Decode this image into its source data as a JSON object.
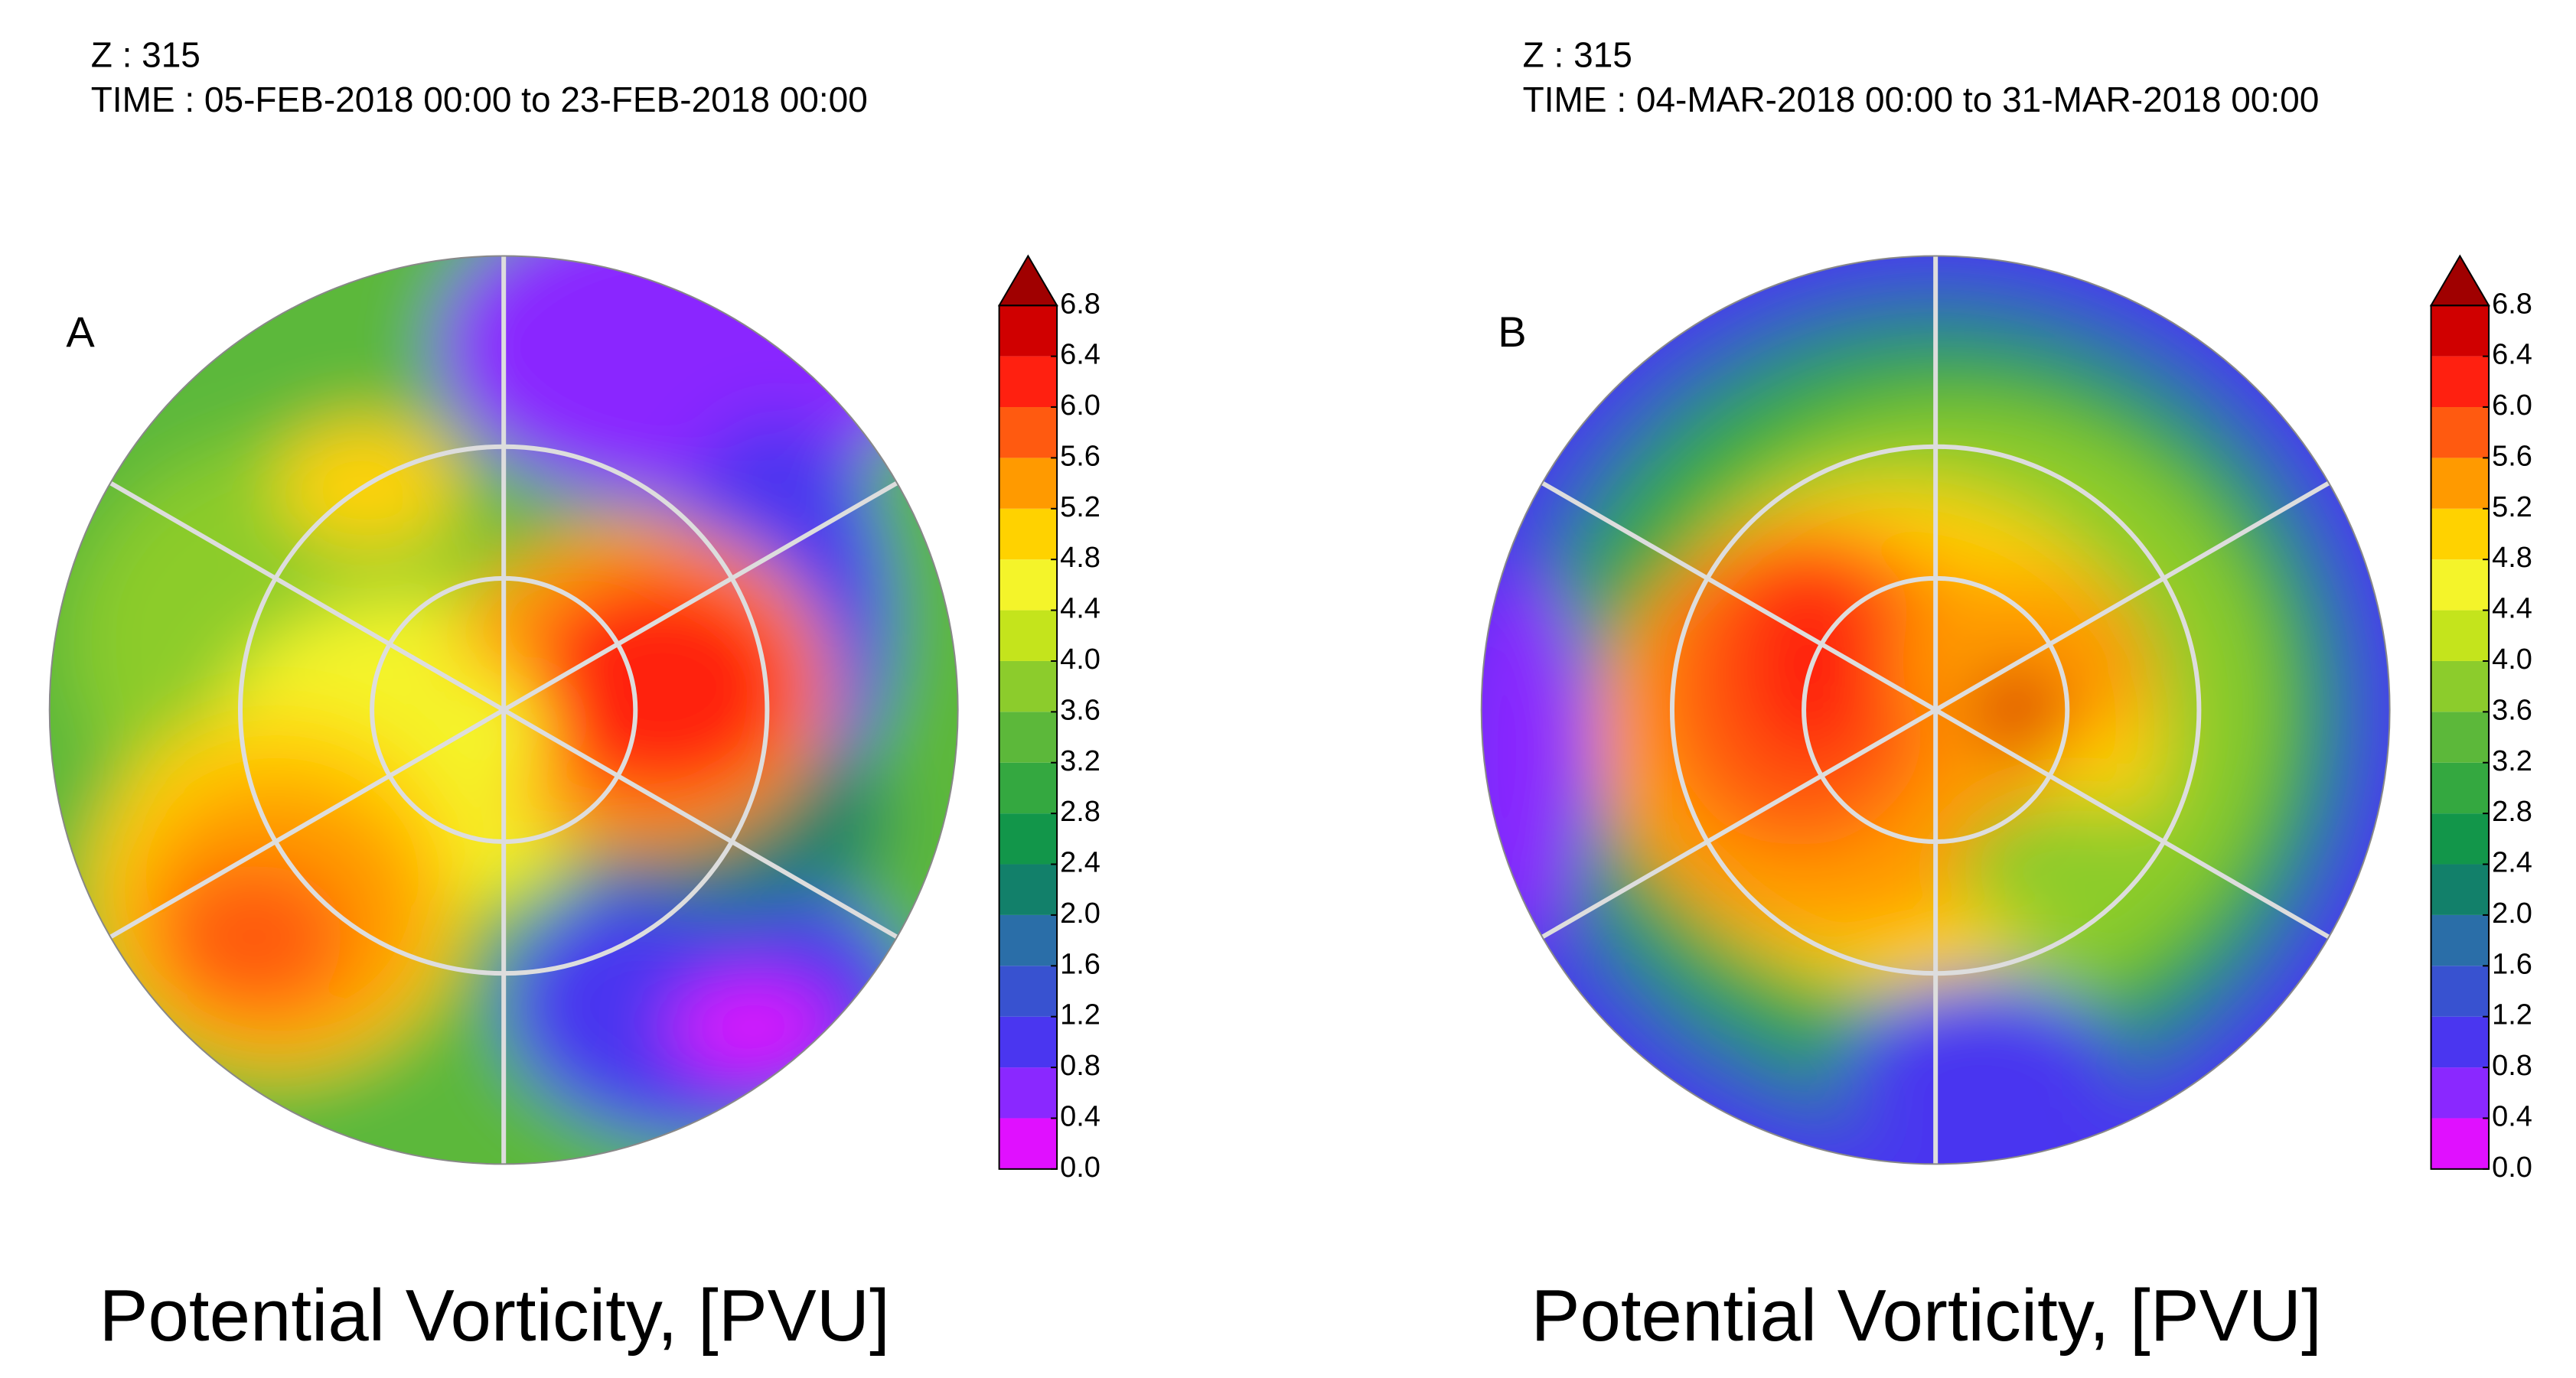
{
  "panels": [
    {
      "z_label": "Z : 315",
      "time_label": "TIME : 05-FEB-2018 00:00 to 23-FEB-2018 00:00",
      "letter": "A",
      "colorbar": {
        "ticks": [
          {
            "value": 0,
            "label": "0.0"
          },
          0.4,
          0.8,
          1.2,
          1.6,
          {
            "value": 2,
            "label": "2.0"
          },
          2.4,
          2.8,
          3.2,
          3.6,
          {
            "value": 4,
            "label": "4.0"
          },
          4.4,
          4.8,
          5.2,
          5.6,
          {
            "value": 6,
            "label": "6.0"
          },
          6.4,
          6.8
        ],
        "colors": [
          "#e010ff",
          "#8a28ff",
          "#4a36f0",
          "#3852d0",
          "#2a6ea8",
          "#12806a",
          "#12964a",
          "#34a840",
          "#5cb83a",
          "#8ccc2c",
          "#c4e41c",
          "#f4f42a",
          "#ffd200",
          "#ff9a00",
          "#ff5a10",
          "#ff2010",
          "#d00000"
        ],
        "over_color": "#a00000"
      },
      "caption": "Potential Vorticity, [PVU]"
    },
    {
      "z_label": "Z : 315",
      "time_label": "TIME : 04-MAR-2018 00:00 to 31-MAR-2018 00:00",
      "letter": "B",
      "colorbar": {
        "ticks": [
          {
            "value": 0,
            "label": "0.0"
          },
          0.4,
          0.8,
          1.2,
          1.6,
          {
            "value": 2,
            "label": "2.0"
          },
          2.4,
          2.8,
          3.2,
          3.6,
          {
            "value": 4,
            "label": "4.0"
          },
          4.4,
          4.8,
          5.2,
          5.6,
          {
            "value": 6,
            "label": "6.0"
          },
          6.4,
          6.8
        ],
        "colors": [
          "#e010ff",
          "#8a28ff",
          "#4a36f0",
          "#3852d0",
          "#2a6ea8",
          "#12806a",
          "#12964a",
          "#34a840",
          "#5cb83a",
          "#8ccc2c",
          "#c4e41c",
          "#f4f42a",
          "#ffd200",
          "#ff9a00",
          "#ff5a10",
          "#ff2010",
          "#d00000"
        ],
        "over_color": "#a00000"
      },
      "caption": "Potential Vorticity, [PVU]"
    }
  ]
}
